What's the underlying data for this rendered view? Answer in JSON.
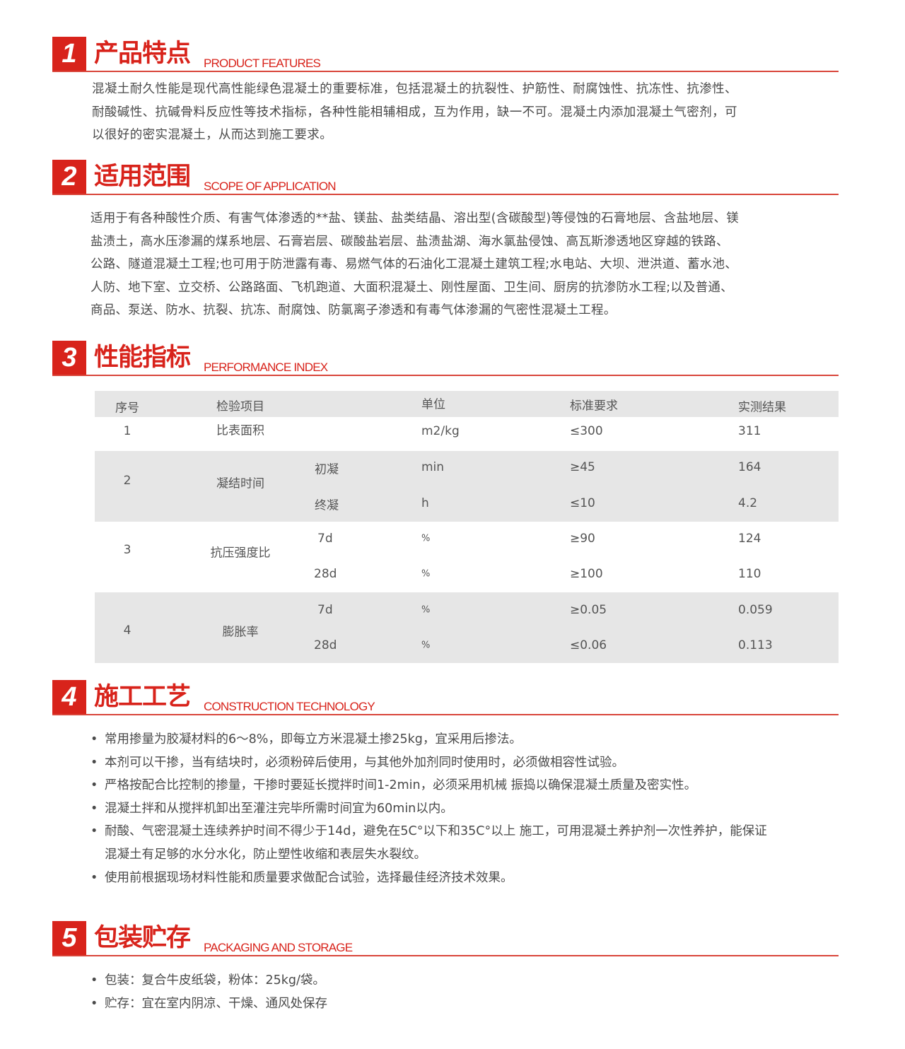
{
  "sections": [
    {
      "num": "1",
      "zh": "产品特点",
      "en": "PRODUCT FEATURES",
      "lines": [
        "混凝土耐久性能是现代高性能绿色混凝土的重要标准，包括混凝土的抗裂性、护筋性、耐腐蚀性、抗冻性、抗渗性、",
        "耐酸碱性、抗碱骨料反应性等技术指标，各种性能相辅相成，互为作用，缺一不可。混凝土内添加混凝土气密剂，可",
        "以很好的密实混凝土，从而达到施工要求。"
      ]
    },
    {
      "num": "2",
      "zh": "适用范围",
      "en": "SCOPE OF APPLICATION",
      "lines": [
        "适用于有各种酸性介质、有害气体渗透的**盐、镁盐、盐类结晶、溶出型(含碳酸型)等侵蚀的石膏地层、含盐地层、镁",
        "盐渍土，高水压渗漏的煤系地层、石膏岩层、碳酸盐岩层、盐渍盐湖、海水氯盐侵蚀、高瓦斯渗透地区穿越的铁路、",
        "公路、隧道混凝土工程;也可用于防泄露有毒、易燃气体的石油化工混凝土建筑工程;水电站、大坝、泄洪道、蓄水池、",
        "人防、地下室、立交桥、公路路面、飞机跑道、大面积混凝土、刚性屋面、卫生间、厨房的抗渗防水工程;以及普通、",
        "商品、泵送、防水、抗裂、抗冻、耐腐蚀、防氯离子渗透和有毒气体渗漏的气密性混凝土工程。"
      ]
    },
    {
      "num": "3",
      "zh": "性能指标",
      "en": "PERFORMANCE INDEX"
    },
    {
      "num": "4",
      "zh": "施工工艺",
      "en": "CONSTRUCTION TECHNOLOGY",
      "lines": [
        "常用掺量为胶凝材料的6～8%，即每立方米混凝土掺25kg，宜采用后掺法。",
        "本剂可以干掺，当有结块时，必须粉碎后使用，与其他外加剂同时使用时，必须做相容性试验。",
        "严格按配合比控制的掺量，干掺时要延长搅拌时间1-2min，必须采用机械 振捣以确保混凝土质量及密实性。",
        "混凝土拌和从搅拌机卸出至灌注完毕所需时间宜为60min以内。",
        "耐酸、气密混凝土连续养护时间不得少于14d，避免在5C°以下和35C°以上 施工，可用混凝土养护剂一次性养护，能保证",
        "混凝土有足够的水分水化，防止塑性收缩和表层失水裂纹。",
        "使用前根据现场材料性能和质量要求做配合试验，选择最佳经济技术效果。"
      ]
    },
    {
      "num": "5",
      "zh": "包装贮存",
      "en": "PACKAGING AND STORAGE",
      "lines": [
        "包装：复合牛皮纸袋，粉体：25kg/袋。",
        "贮存：宜在室内阴凉、干燥、通风处保存"
      ]
    }
  ],
  "table": {
    "headers": [
      "序号",
      "检验项目",
      "单位",
      "标准要求",
      "实测结果"
    ],
    "rows": [
      {
        "no": "1",
        "item": "比表面积",
        "sub": "",
        "unit": "m2/kg",
        "std": "≤300",
        "result": "311"
      },
      {
        "no": "2",
        "item": "凝结时间",
        "sub": "初凝",
        "unit": "min",
        "std": "≥45",
        "result": "164"
      },
      {
        "sub": "终凝",
        "unit": "h",
        "std": "≤10",
        "result": "4.2"
      },
      {
        "no": "3",
        "item": "抗压强度比",
        "sub": "7d",
        "unit": "%",
        "std": "≥90",
        "result": "124"
      },
      {
        "sub": "28d",
        "unit": "%",
        "std": "≥100",
        "result": "110"
      },
      {
        "no": "4",
        "item": "膨胀率",
        "sub": "7d",
        "unit": "%",
        "std": "≥0.05",
        "result": "0.059"
      },
      {
        "sub": "28d",
        "unit": "%",
        "std": "≤0.06",
        "result": "0.113"
      }
    ]
  },
  "colors": {
    "accent": "#d8231b",
    "band": "#e6e6e6"
  }
}
